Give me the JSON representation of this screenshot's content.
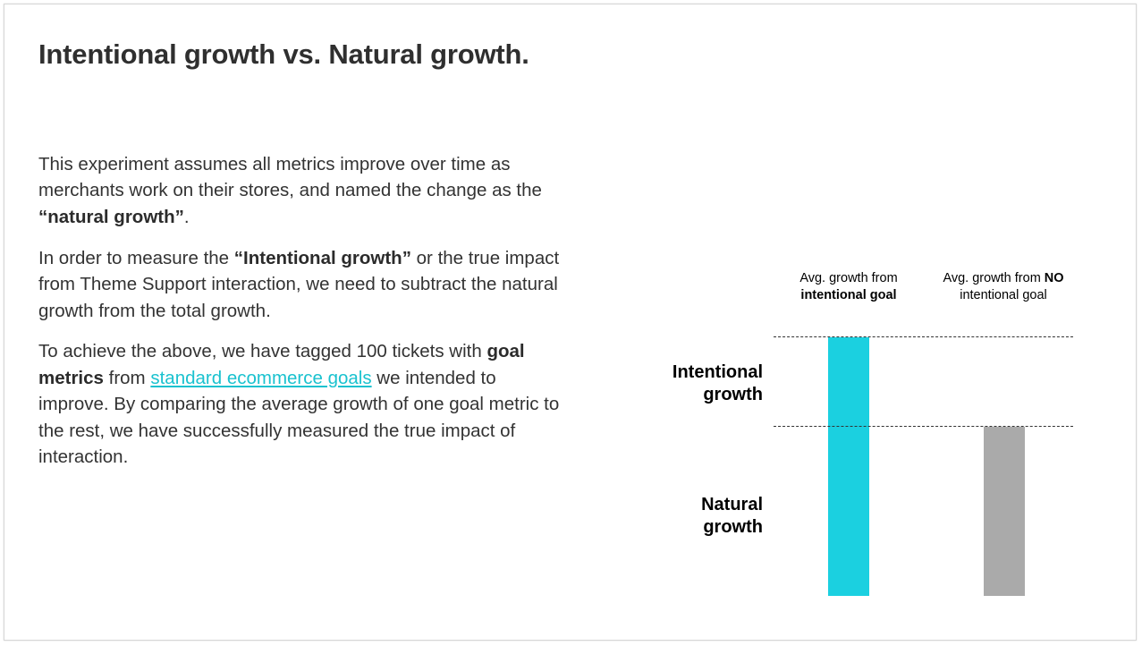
{
  "slide": {
    "title": "Intentional growth vs. Natural growth.",
    "paragraph1": {
      "text1": "This experiment assumes all metrics improve over time as merchants work on their stores, and named the change as the ",
      "bold1": "“natural growth”",
      "text2": "."
    },
    "paragraph2": {
      "text1": "In order to measure the ",
      "bold1": "“Intentional growth”",
      "text2": " or the true impact from Theme Support interaction, we need to subtract the natural growth from the total growth."
    },
    "paragraph3": {
      "text1": "To achieve the above, we have tagged 100 tickets with ",
      "bold1": "goal metrics",
      "text2": " from ",
      "link": "standard ecommerce goals",
      "text3": " we intended to improve. By comparing the average growth of one goal metric to the rest, we have successfully measured the true impact of interaction."
    }
  },
  "diagram": {
    "col1_label": {
      "line1": "Avg. growth from",
      "line2_bold": "intentional goal"
    },
    "col2_label": {
      "line1_text": "Avg. growth from ",
      "line1_bold": "NO",
      "line2": "intentional goal"
    },
    "row_labels": {
      "intentional_line1": "Intentional",
      "intentional_line2": "growth",
      "natural_line1": "Natural",
      "natural_line2": "growth"
    },
    "colors": {
      "intentional_bar": "#1bd0e0",
      "natural_bar": "#aaaaaa",
      "link": "#1ac2cf"
    }
  }
}
